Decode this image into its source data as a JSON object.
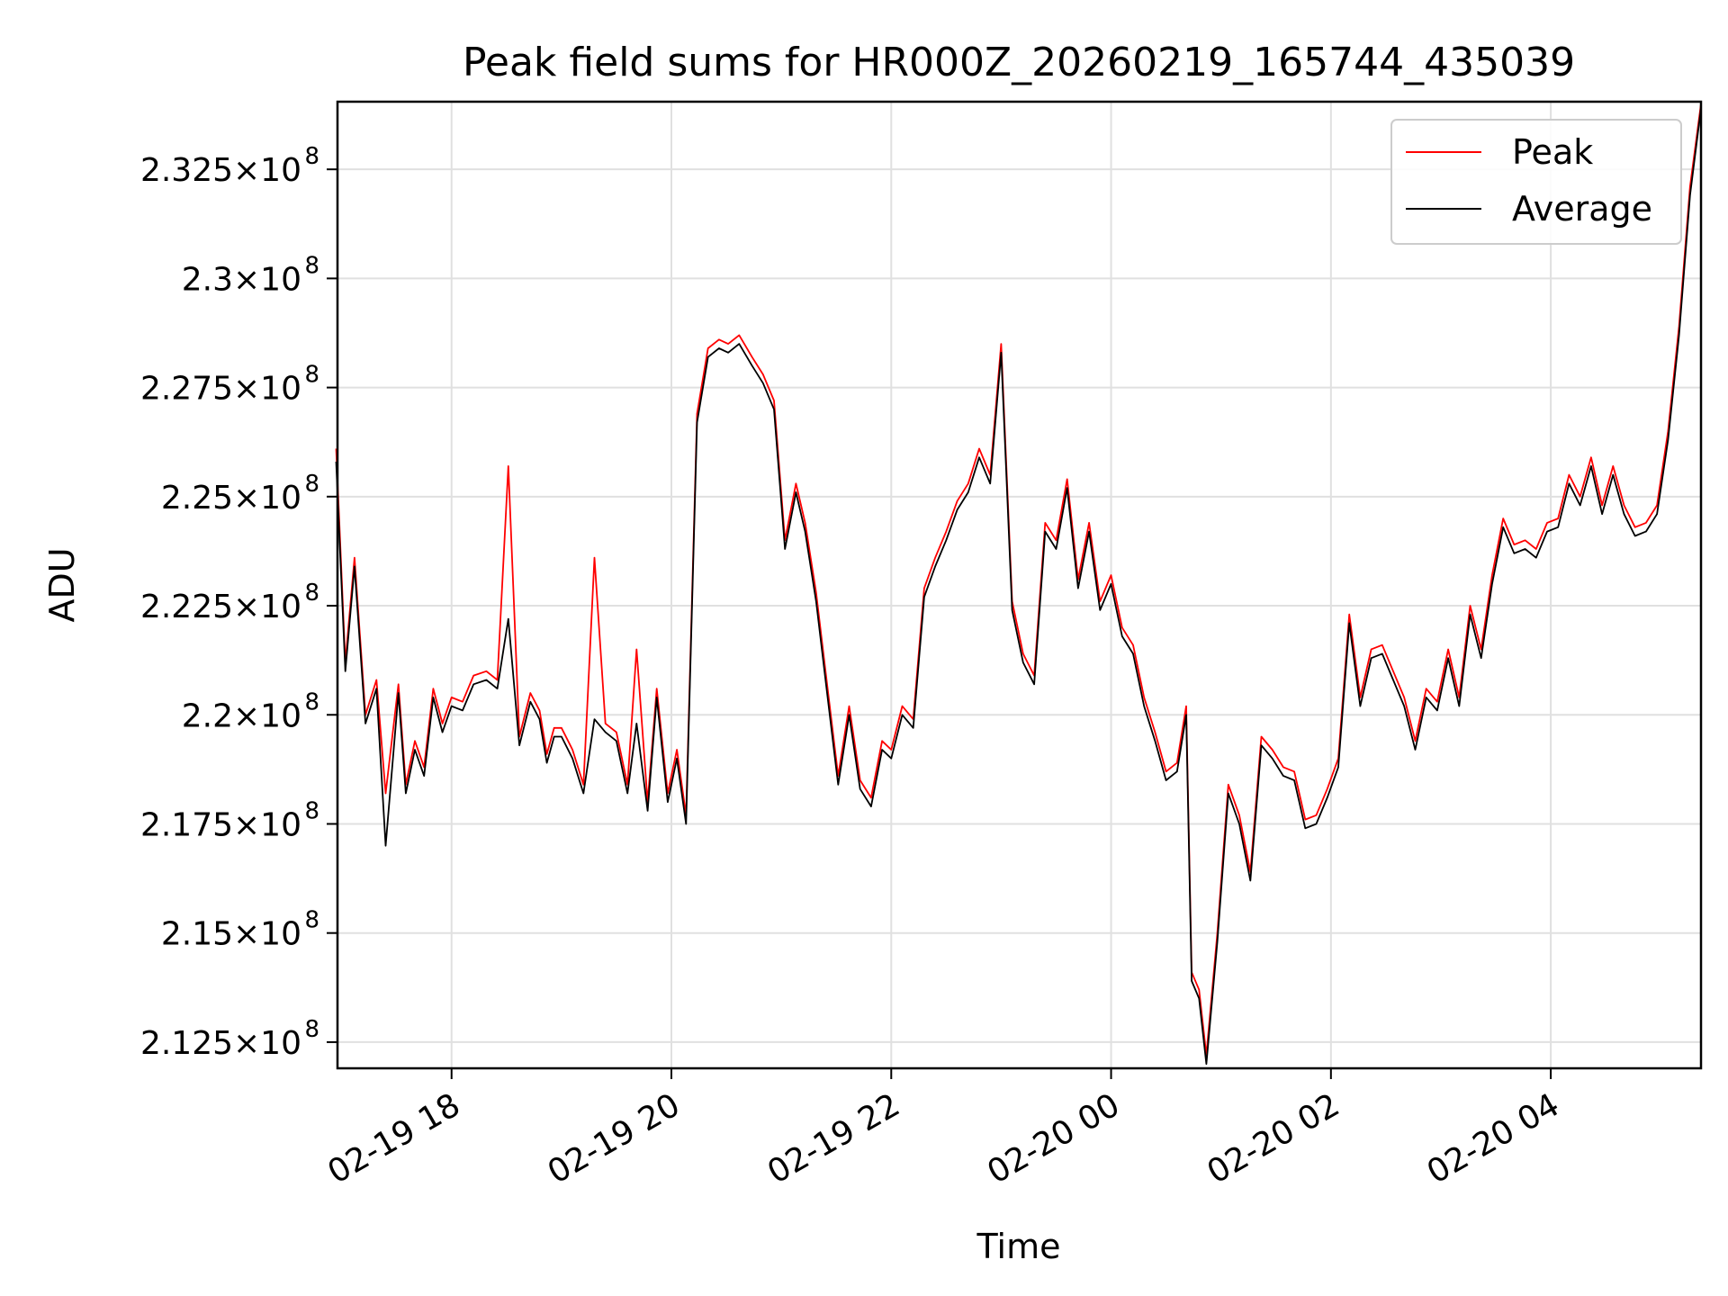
{
  "chart_data": {
    "type": "line",
    "title": "Peak field sums for HR000Z_20260219_165744_435039",
    "xlabel": "Time",
    "ylabel": "ADU",
    "x_range": [
      "2026-02-19 16:57:44",
      "2026-02-20 05:22:00"
    ],
    "ylim": [
      211900000,
      234050000
    ],
    "x_ticks": [
      {
        "value": "2026-02-19 18:00",
        "label": "02-19 18"
      },
      {
        "value": "2026-02-19 20:00",
        "label": "02-19 20"
      },
      {
        "value": "2026-02-19 22:00",
        "label": "02-19 22"
      },
      {
        "value": "2026-02-20 00:00",
        "label": "02-20 00"
      },
      {
        "value": "2026-02-20 02:00",
        "label": "02-20 02"
      },
      {
        "value": "2026-02-20 04:00",
        "label": "02-20 04"
      }
    ],
    "y_ticks": [
      {
        "value": 212500000,
        "mantissa": "2.125",
        "exponent": "8"
      },
      {
        "value": 215000000,
        "mantissa": "2.15",
        "exponent": "8"
      },
      {
        "value": 217500000,
        "mantissa": "2.175",
        "exponent": "8"
      },
      {
        "value": 220000000,
        "mantissa": "2.2",
        "exponent": "8"
      },
      {
        "value": 222500000,
        "mantissa": "2.225",
        "exponent": "8"
      },
      {
        "value": 225000000,
        "mantissa": "2.25",
        "exponent": "8"
      },
      {
        "value": 227500000,
        "mantissa": "2.275",
        "exponent": "8"
      },
      {
        "value": 230000000,
        "mantissa": "2.3",
        "exponent": "8"
      },
      {
        "value": 232500000,
        "mantissa": "2.325",
        "exponent": "8"
      }
    ],
    "y_scale_text": "×10",
    "grid": true,
    "legend_position": "top-right",
    "series": [
      {
        "name": "Peak",
        "color": "#ff0000",
        "x": [
          "2026-02-19 16:57",
          "2026-02-19 17:02",
          "2026-02-19 17:07",
          "2026-02-19 17:13",
          "2026-02-19 17:19",
          "2026-02-19 17:24",
          "2026-02-19 17:31",
          "2026-02-19 17:35",
          "2026-02-19 17:40",
          "2026-02-19 17:45",
          "2026-02-19 17:50",
          "2026-02-19 17:55",
          "2026-02-19 18:00",
          "2026-02-19 18:06",
          "2026-02-19 18:12",
          "2026-02-19 18:19",
          "2026-02-19 18:25",
          "2026-02-19 18:31",
          "2026-02-19 18:37",
          "2026-02-19 18:43",
          "2026-02-19 18:48",
          "2026-02-19 18:52",
          "2026-02-19 18:56",
          "2026-02-19 19:00",
          "2026-02-19 19:06",
          "2026-02-19 19:12",
          "2026-02-19 19:18",
          "2026-02-19 19:24",
          "2026-02-19 19:30",
          "2026-02-19 19:36",
          "2026-02-19 19:41",
          "2026-02-19 19:47",
          "2026-02-19 19:52",
          "2026-02-19 19:58",
          "2026-02-19 20:03",
          "2026-02-19 20:08",
          "2026-02-19 20:14",
          "2026-02-19 20:20",
          "2026-02-19 20:26",
          "2026-02-19 20:31",
          "2026-02-19 20:37",
          "2026-02-19 20:44",
          "2026-02-19 20:50",
          "2026-02-19 20:56",
          "2026-02-19 21:02",
          "2026-02-19 21:08",
          "2026-02-19 21:13",
          "2026-02-19 21:19",
          "2026-02-19 21:25",
          "2026-02-19 21:31",
          "2026-02-19 21:37",
          "2026-02-19 21:43",
          "2026-02-19 21:49",
          "2026-02-19 21:55",
          "2026-02-19 22:00",
          "2026-02-19 22:06",
          "2026-02-19 22:12",
          "2026-02-19 22:18",
          "2026-02-19 22:24",
          "2026-02-19 22:30",
          "2026-02-19 22:36",
          "2026-02-19 22:42",
          "2026-02-19 22:48",
          "2026-02-19 22:54",
          "2026-02-19 23:00",
          "2026-02-19 23:06",
          "2026-02-19 23:12",
          "2026-02-19 23:18",
          "2026-02-19 23:24",
          "2026-02-19 23:30",
          "2026-02-19 23:36",
          "2026-02-19 23:42",
          "2026-02-19 23:48",
          "2026-02-19 23:54",
          "2026-02-20 00:00",
          "2026-02-20 00:06",
          "2026-02-20 00:12",
          "2026-02-20 00:18",
          "2026-02-20 00:24",
          "2026-02-20 00:30",
          "2026-02-20 00:36",
          "2026-02-20 00:41",
          "2026-02-20 00:44",
          "2026-02-20 00:48",
          "2026-02-20 00:52",
          "2026-02-20 00:58",
          "2026-02-20 01:04",
          "2026-02-20 01:10",
          "2026-02-20 01:16",
          "2026-02-20 01:22",
          "2026-02-20 01:28",
          "2026-02-20 01:34",
          "2026-02-20 01:40",
          "2026-02-20 01:46",
          "2026-02-20 01:52",
          "2026-02-20 01:58",
          "2026-02-20 02:04",
          "2026-02-20 02:10",
          "2026-02-20 02:16",
          "2026-02-20 02:22",
          "2026-02-20 02:28",
          "2026-02-20 02:34",
          "2026-02-20 02:40",
          "2026-02-20 02:46",
          "2026-02-20 02:52",
          "2026-02-20 02:58",
          "2026-02-20 03:04",
          "2026-02-20 03:10",
          "2026-02-20 03:16",
          "2026-02-20 03:22",
          "2026-02-20 03:28",
          "2026-02-20 03:34",
          "2026-02-20 03:40",
          "2026-02-20 03:46",
          "2026-02-20 03:52",
          "2026-02-20 03:58",
          "2026-02-20 04:04",
          "2026-02-20 04:10",
          "2026-02-20 04:16",
          "2026-02-20 04:22",
          "2026-02-20 04:28",
          "2026-02-20 04:34",
          "2026-02-20 04:40",
          "2026-02-20 04:46",
          "2026-02-20 04:52",
          "2026-02-20 04:58",
          "2026-02-20 05:04",
          "2026-02-20 05:10",
          "2026-02-20 05:16",
          "2026-02-20 05:22"
        ],
        "values": [
          226100000,
          221200000,
          223600000,
          220000000,
          220800000,
          218200000,
          220700000,
          218400000,
          219400000,
          218800000,
          220600000,
          219800000,
          220400000,
          220300000,
          220900000,
          221000000,
          220800000,
          225700000,
          219500000,
          220500000,
          220100000,
          219100000,
          219700000,
          219700000,
          219200000,
          218400000,
          223600000,
          219800000,
          219600000,
          218400000,
          221500000,
          218000000,
          220600000,
          218200000,
          219200000,
          217700000,
          226900000,
          228400000,
          228600000,
          228500000,
          228700000,
          228200000,
          227800000,
          227200000,
          224000000,
          225300000,
          224400000,
          222800000,
          220700000,
          218600000,
          220200000,
          218500000,
          218100000,
          219400000,
          219200000,
          220200000,
          219900000,
          222900000,
          223600000,
          224200000,
          224900000,
          225300000,
          226100000,
          225500000,
          228500000,
          222600000,
          221400000,
          220900000,
          224400000,
          224000000,
          225400000,
          223100000,
          224400000,
          222600000,
          223200000,
          222000000,
          221600000,
          220400000,
          219600000,
          218700000,
          218900000,
          220200000,
          214100000,
          213700000,
          212200000,
          215000000,
          218400000,
          217700000,
          216400000,
          219500000,
          219200000,
          218800000,
          218700000,
          217600000,
          217700000,
          218300000,
          219000000,
          222300000,
          220400000,
          221500000,
          221600000,
          221000000,
          220400000,
          219400000,
          220600000,
          220300000,
          221500000,
          220400000,
          222500000,
          221500000,
          223200000,
          224500000,
          223900000,
          224000000,
          223800000,
          224400000,
          224500000,
          225500000,
          225000000,
          225900000,
          224800000,
          225700000,
          224800000,
          224300000,
          224400000,
          224800000,
          226500000,
          228900000,
          232100000,
          234000000
        ]
      },
      {
        "name": "Average",
        "color": "#000000",
        "x": [
          "2026-02-19 16:57",
          "2026-02-19 17:02",
          "2026-02-19 17:07",
          "2026-02-19 17:13",
          "2026-02-19 17:19",
          "2026-02-19 17:24",
          "2026-02-19 17:31",
          "2026-02-19 17:35",
          "2026-02-19 17:40",
          "2026-02-19 17:45",
          "2026-02-19 17:50",
          "2026-02-19 17:55",
          "2026-02-19 18:00",
          "2026-02-19 18:06",
          "2026-02-19 18:12",
          "2026-02-19 18:19",
          "2026-02-19 18:25",
          "2026-02-19 18:31",
          "2026-02-19 18:37",
          "2026-02-19 18:43",
          "2026-02-19 18:48",
          "2026-02-19 18:52",
          "2026-02-19 18:56",
          "2026-02-19 19:00",
          "2026-02-19 19:06",
          "2026-02-19 19:12",
          "2026-02-19 19:18",
          "2026-02-19 19:24",
          "2026-02-19 19:30",
          "2026-02-19 19:36",
          "2026-02-19 19:41",
          "2026-02-19 19:47",
          "2026-02-19 19:52",
          "2026-02-19 19:58",
          "2026-02-19 20:03",
          "2026-02-19 20:08",
          "2026-02-19 20:14",
          "2026-02-19 20:20",
          "2026-02-19 20:26",
          "2026-02-19 20:31",
          "2026-02-19 20:37",
          "2026-02-19 20:44",
          "2026-02-19 20:50",
          "2026-02-19 20:56",
          "2026-02-19 21:02",
          "2026-02-19 21:08",
          "2026-02-19 21:13",
          "2026-02-19 21:19",
          "2026-02-19 21:25",
          "2026-02-19 21:31",
          "2026-02-19 21:37",
          "2026-02-19 21:43",
          "2026-02-19 21:49",
          "2026-02-19 21:55",
          "2026-02-19 22:00",
          "2026-02-19 22:06",
          "2026-02-19 22:12",
          "2026-02-19 22:18",
          "2026-02-19 22:24",
          "2026-02-19 22:30",
          "2026-02-19 22:36",
          "2026-02-19 22:42",
          "2026-02-19 22:48",
          "2026-02-19 22:54",
          "2026-02-19 23:00",
          "2026-02-19 23:06",
          "2026-02-19 23:12",
          "2026-02-19 23:18",
          "2026-02-19 23:24",
          "2026-02-19 23:30",
          "2026-02-19 23:36",
          "2026-02-19 23:42",
          "2026-02-19 23:48",
          "2026-02-19 23:54",
          "2026-02-20 00:00",
          "2026-02-20 00:06",
          "2026-02-20 00:12",
          "2026-02-20 00:18",
          "2026-02-20 00:24",
          "2026-02-20 00:30",
          "2026-02-20 00:36",
          "2026-02-20 00:41",
          "2026-02-20 00:44",
          "2026-02-20 00:48",
          "2026-02-20 00:52",
          "2026-02-20 00:58",
          "2026-02-20 01:04",
          "2026-02-20 01:10",
          "2026-02-20 01:16",
          "2026-02-20 01:22",
          "2026-02-20 01:28",
          "2026-02-20 01:34",
          "2026-02-20 01:40",
          "2026-02-20 01:46",
          "2026-02-20 01:52",
          "2026-02-20 01:58",
          "2026-02-20 02:04",
          "2026-02-20 02:10",
          "2026-02-20 02:16",
          "2026-02-20 02:22",
          "2026-02-20 02:28",
          "2026-02-20 02:34",
          "2026-02-20 02:40",
          "2026-02-20 02:46",
          "2026-02-20 02:52",
          "2026-02-20 02:58",
          "2026-02-20 03:04",
          "2026-02-20 03:10",
          "2026-02-20 03:16",
          "2026-02-20 03:22",
          "2026-02-20 03:28",
          "2026-02-20 03:34",
          "2026-02-20 03:40",
          "2026-02-20 03:46",
          "2026-02-20 03:52",
          "2026-02-20 03:58",
          "2026-02-20 04:04",
          "2026-02-20 04:10",
          "2026-02-20 04:16",
          "2026-02-20 04:22",
          "2026-02-20 04:28",
          "2026-02-20 04:34",
          "2026-02-20 04:40",
          "2026-02-20 04:46",
          "2026-02-20 04:52",
          "2026-02-20 04:58",
          "2026-02-20 05:04",
          "2026-02-20 05:10",
          "2026-02-20 05:16",
          "2026-02-20 05:22"
        ],
        "values": [
          225800000,
          221000000,
          223400000,
          219800000,
          220600000,
          217000000,
          220500000,
          218200000,
          219200000,
          218600000,
          220400000,
          219600000,
          220200000,
          220100000,
          220700000,
          220800000,
          220600000,
          222200000,
          219300000,
          220300000,
          219900000,
          218900000,
          219500000,
          219500000,
          219000000,
          218200000,
          219900000,
          219600000,
          219400000,
          218200000,
          219800000,
          217800000,
          220400000,
          218000000,
          219000000,
          217500000,
          226700000,
          228200000,
          228400000,
          228300000,
          228500000,
          228000000,
          227600000,
          227000000,
          223800000,
          225100000,
          224200000,
          222600000,
          220500000,
          218400000,
          220000000,
          218300000,
          217900000,
          219200000,
          219000000,
          220000000,
          219700000,
          222700000,
          223400000,
          224000000,
          224700000,
          225100000,
          225900000,
          225300000,
          228300000,
          222400000,
          221200000,
          220700000,
          224200000,
          223800000,
          225200000,
          222900000,
          224200000,
          222400000,
          223000000,
          221800000,
          221400000,
          220200000,
          219400000,
          218500000,
          218700000,
          220000000,
          213900000,
          213500000,
          212000000,
          214800000,
          218200000,
          217500000,
          216200000,
          219300000,
          219000000,
          218600000,
          218500000,
          217400000,
          217500000,
          218100000,
          218800000,
          222100000,
          220200000,
          221300000,
          221400000,
          220800000,
          220200000,
          219200000,
          220400000,
          220100000,
          221300000,
          220200000,
          222300000,
          221300000,
          223000000,
          224300000,
          223700000,
          223800000,
          223600000,
          224200000,
          224300000,
          225300000,
          224800000,
          225700000,
          224600000,
          225500000,
          224600000,
          224100000,
          224200000,
          224600000,
          226300000,
          228700000,
          231900000,
          233900000
        ]
      }
    ]
  }
}
